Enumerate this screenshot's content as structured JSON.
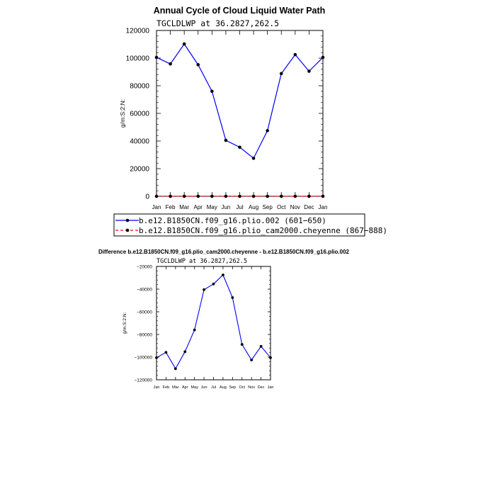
{
  "chart_data": [
    {
      "type": "line",
      "title": "Annual Cycle of Cloud Liquid Water Path",
      "subtitle": "TGCLDLWP  at  36.2827,262.5",
      "ylabel": "g/m:S:2:N:",
      "xlabel": "",
      "categories": [
        "Jan",
        "Feb",
        "Mar",
        "Apr",
        "May",
        "Jun",
        "Jul",
        "Aug",
        "Sep",
        "Oct",
        "Nov",
        "Dec",
        "Jan"
      ],
      "ylim": [
        0,
        120000
      ],
      "yticks": [
        0,
        20000,
        40000,
        60000,
        80000,
        100000,
        120000
      ],
      "ytick_labels": [
        "0",
        "20000",
        "40000",
        "60000",
        "80000",
        "100000",
        "120000"
      ],
      "series": [
        {
          "name": "b.e12.B1850CN.f09_g16.plio.002 (601−650)",
          "color": "#0000ff",
          "dash": "solid",
          "values": [
            100500,
            95800,
            110200,
            95200,
            76000,
            40500,
            35500,
            27500,
            47500,
            88800,
            102500,
            90500,
            100500
          ]
        },
        {
          "name": "b.e12.B1850CN.f09_g16.plio_cam2000.cheyenne (867−888)",
          "color": "#ff0000",
          "dash": "dashed",
          "values": [
            0,
            0,
            0,
            0,
            0,
            0,
            0,
            0,
            0,
            0,
            0,
            0,
            0
          ]
        }
      ]
    },
    {
      "type": "line",
      "title": "Difference b.e12.B1850CN.f09_g16.plio_cam2000.cheyenne - b.e12.B1850CN.f09_g16.plio.002",
      "subtitle": "TGCLDLWP  at  36.2827,262.5",
      "ylabel": "g/m:S:2:N:",
      "xlabel": "",
      "categories": [
        "Jan",
        "Feb",
        "Mar",
        "Apr",
        "May",
        "Jun",
        "Jul",
        "Aug",
        "Sep",
        "Oct",
        "Nov",
        "Dec",
        "Jan"
      ],
      "ylim": [
        -120000,
        -20000
      ],
      "yticks": [
        -120000,
        -100000,
        -80000,
        -60000,
        -40000,
        -20000
      ],
      "ytick_labels": [
        "−120000",
        "−100000",
        "−80000",
        "−60000",
        "−40000",
        "−20000"
      ],
      "series": [
        {
          "name": "difference",
          "color": "#0000ff",
          "dash": "solid",
          "values": [
            -100500,
            -95800,
            -110200,
            -95200,
            -76000,
            -40500,
            -35500,
            -27500,
            -47500,
            -88800,
            -102500,
            -90500,
            -100500
          ]
        }
      ]
    }
  ]
}
